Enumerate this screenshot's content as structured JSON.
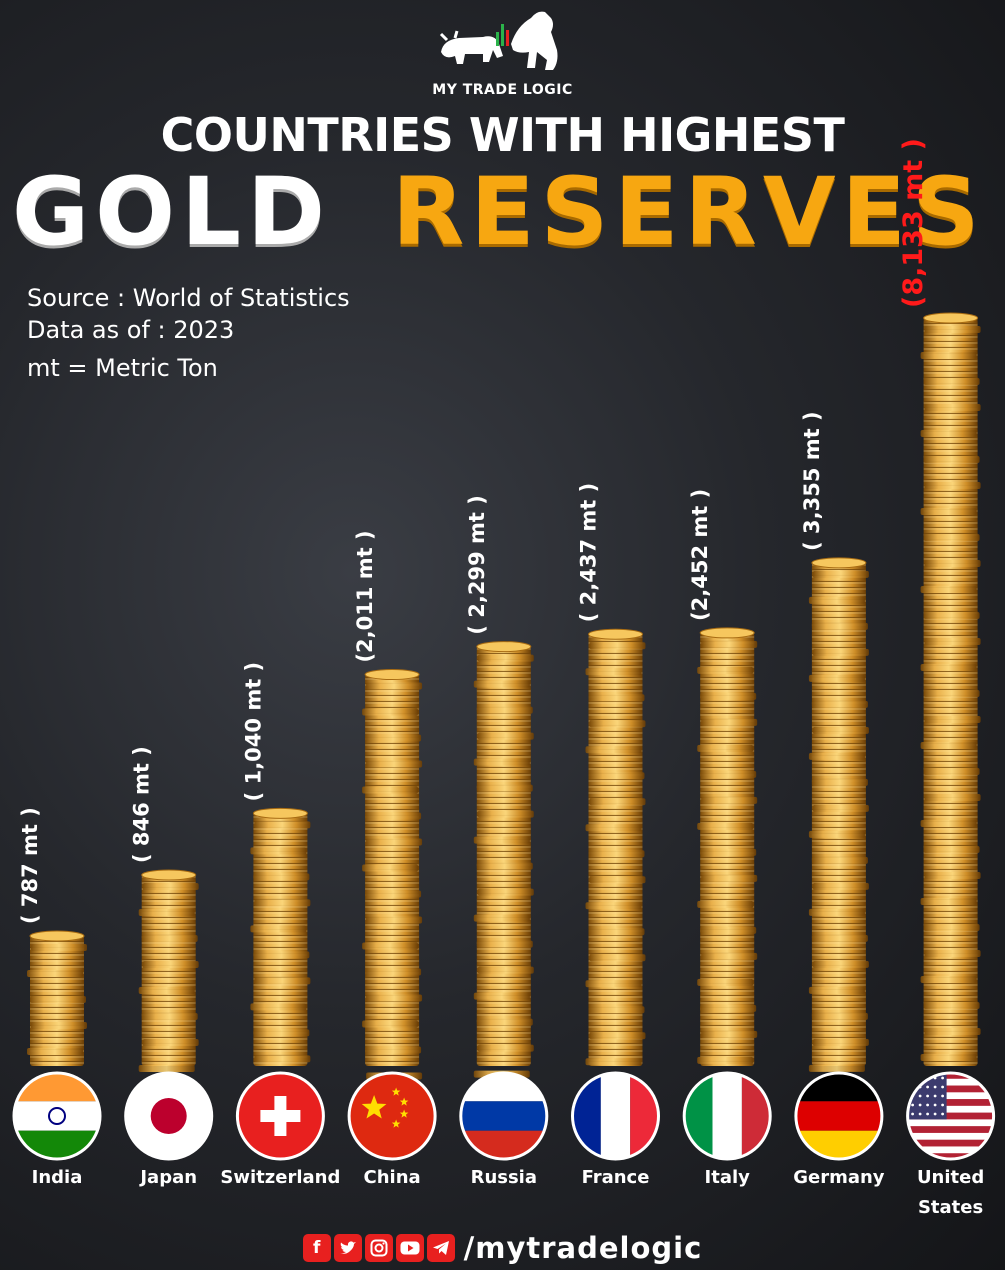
{
  "brand": "MY TRADE LOGIC",
  "title_line1": "COUNTRIES WITH HIGHEST",
  "title_word1": "GOLD",
  "title_word2": "RESERVES",
  "meta": {
    "source": "Source : World of Statistics",
    "date": "Data as of : 2023",
    "unit_note": "mt = Metric Ton"
  },
  "colors": {
    "accent": "#f7a711",
    "highlight": "#ff1a1a",
    "coin": "#e0a23a"
  },
  "chart_data": {
    "type": "bar",
    "title": "",
    "xlabel": "",
    "ylabel": "",
    "categories": [
      "India",
      "Japan",
      "Switzerland",
      "China",
      "Russia",
      "France",
      "Italy",
      "Germany",
      "United States"
    ],
    "values": [
      787,
      846,
      1040,
      2011,
      2299,
      2437,
      2452,
      3355,
      8133
    ],
    "value_labels": [
      "( 787 mt )",
      "( 846 mt )",
      "( 1,040 mt )",
      "(2,011 mt )",
      "( 2,299 mt )",
      "( 2,437 mt )",
      "(2,452 mt )",
      "( 3,355 mt )",
      "(8,133 mt )"
    ],
    "highlight_index": 8,
    "flag_icons": [
      "india-flag-icon",
      "japan-flag-icon",
      "switzerland-flag-icon",
      "china-flag-icon",
      "russia-flag-icon",
      "france-flag-icon",
      "italy-flag-icon",
      "germany-flag-icon",
      "united-states-flag-icon"
    ]
  },
  "footer": {
    "social_icons": [
      "facebook-icon",
      "twitter-icon",
      "instagram-icon",
      "youtube-icon",
      "telegram-icon"
    ],
    "handle": "/mytradelogic"
  }
}
